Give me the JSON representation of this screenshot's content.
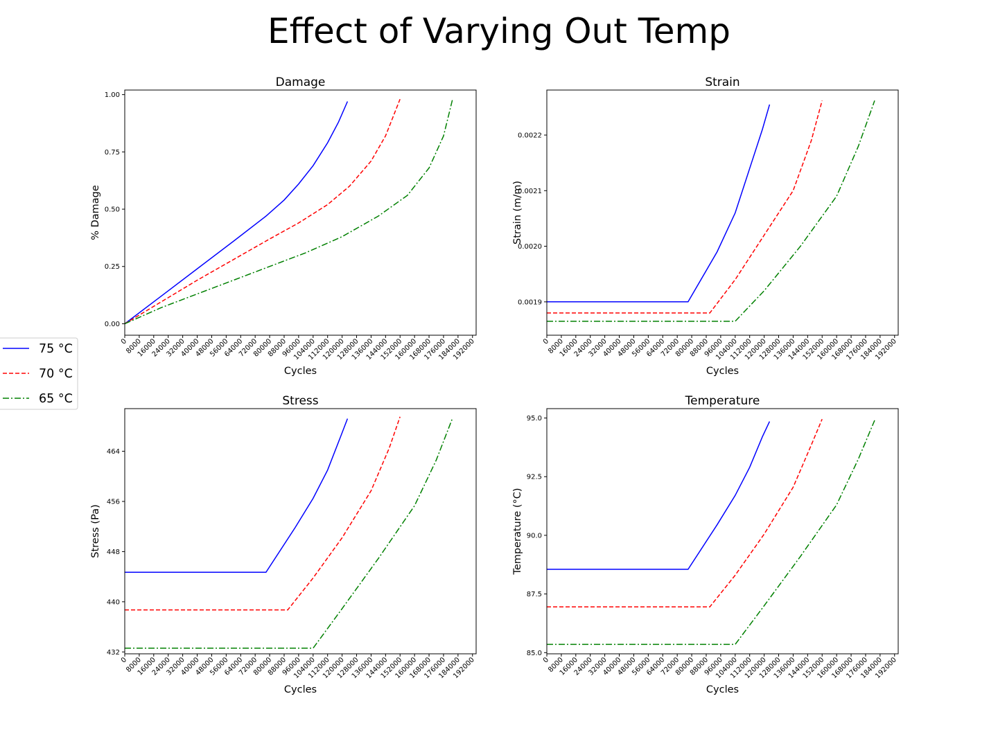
{
  "figure": {
    "title": "Effect of Varying Out Temp"
  },
  "legend": {
    "placement": "left",
    "entries": [
      {
        "label": "75 °C",
        "color": "#0000ff",
        "dash": "solid"
      },
      {
        "label": "70 °C",
        "color": "#ff0000",
        "dash": "dashed"
      },
      {
        "label": "65 °C",
        "color": "#008000",
        "dash": "dashdot"
      }
    ]
  },
  "chart_data": [
    {
      "type": "line",
      "title": "Damage",
      "xlabel": "Cycles",
      "ylabel": "% Damage",
      "xlim": [
        0,
        194000
      ],
      "ylim": [
        -0.05,
        1.02
      ],
      "xticks": [
        0,
        8000,
        16000,
        24000,
        32000,
        40000,
        48000,
        56000,
        64000,
        72000,
        80000,
        88000,
        96000,
        104000,
        112000,
        120000,
        128000,
        136000,
        144000,
        152000,
        160000,
        168000,
        176000,
        184000,
        192000
      ],
      "yticks": [
        0.0,
        0.25,
        0.5,
        0.75,
        1.0
      ],
      "ytick_labels": [
        "0.00",
        "0.25",
        "0.50",
        "0.75",
        "1.00"
      ],
      "series": [
        {
          "name": "75 °C",
          "x": [
            0,
            20000,
            40000,
            60000,
            78000,
            88000,
            96000,
            104000,
            112000,
            118000,
            123000
          ],
          "y": [
            0,
            0.12,
            0.24,
            0.36,
            0.47,
            0.54,
            0.61,
            0.69,
            0.79,
            0.88,
            0.97
          ]
        },
        {
          "name": "70 °C",
          "x": [
            0,
            20000,
            40000,
            60000,
            80000,
            96000,
            112000,
            124000,
            136000,
            144000,
            152000
          ],
          "y": [
            0,
            0.095,
            0.19,
            0.28,
            0.37,
            0.44,
            0.52,
            0.6,
            0.71,
            0.82,
            0.98
          ]
        },
        {
          "name": "65 °C",
          "x": [
            0,
            20000,
            40000,
            60000,
            80000,
            100000,
            120000,
            140000,
            156000,
            168000,
            176000,
            181000
          ],
          "y": [
            0,
            0.07,
            0.13,
            0.19,
            0.25,
            0.31,
            0.38,
            0.47,
            0.56,
            0.68,
            0.82,
            0.98
          ]
        }
      ]
    },
    {
      "type": "line",
      "title": "Strain",
      "xlabel": "Cycles",
      "ylabel": "Strain (m/m)",
      "xlim": [
        0,
        194000
      ],
      "ylim": [
        0.00184,
        0.002281
      ],
      "xticks": [
        0,
        8000,
        16000,
        24000,
        32000,
        40000,
        48000,
        56000,
        64000,
        72000,
        80000,
        88000,
        96000,
        104000,
        112000,
        120000,
        128000,
        136000,
        144000,
        152000,
        160000,
        168000,
        176000,
        184000,
        192000
      ],
      "yticks": [
        0.0019,
        0.002,
        0.0021,
        0.0022
      ],
      "ytick_labels": [
        "0.0019",
        "0.0020",
        "0.0021",
        "0.0022"
      ],
      "series": [
        {
          "name": "75 °C",
          "x": [
            0,
            78000,
            94000,
            104000,
            112000,
            119000,
            123000
          ],
          "y": [
            0.0019,
            0.0019,
            0.00199,
            0.00206,
            0.00214,
            0.00221,
            0.002255
          ]
        },
        {
          "name": "70 °C",
          "x": [
            0,
            90000,
            104000,
            120000,
            136000,
            146000,
            152000
          ],
          "y": [
            0.00188,
            0.00188,
            0.00194,
            0.00202,
            0.0021,
            0.00219,
            0.002262
          ]
        },
        {
          "name": "65 °C",
          "x": [
            0,
            104000,
            120000,
            140000,
            160000,
            172000,
            181000
          ],
          "y": [
            0.001865,
            0.001865,
            0.00192,
            0.002,
            0.00209,
            0.00218,
            0.002262
          ]
        }
      ]
    },
    {
      "type": "line",
      "title": "Stress",
      "xlabel": "Cycles",
      "ylabel": "Stress (Pa)",
      "xlim": [
        0,
        194000
      ],
      "ylim": [
        431.7,
        470.8
      ],
      "xticks": [
        0,
        8000,
        16000,
        24000,
        32000,
        40000,
        48000,
        56000,
        64000,
        72000,
        80000,
        88000,
        96000,
        104000,
        112000,
        120000,
        128000,
        136000,
        144000,
        152000,
        160000,
        168000,
        176000,
        184000,
        192000
      ],
      "yticks": [
        432,
        440,
        448,
        456,
        464
      ],
      "ytick_labels": [
        "432",
        "440",
        "448",
        "456",
        "464"
      ],
      "series": [
        {
          "name": "75 °C",
          "x": [
            0,
            78000,
            94000,
            104000,
            112000,
            119000,
            123000
          ],
          "y": [
            444.7,
            444.7,
            451.8,
            456.5,
            461.0,
            466.2,
            469.2
          ]
        },
        {
          "name": "70 °C",
          "x": [
            0,
            90000,
            104000,
            120000,
            136000,
            146000,
            152000
          ],
          "y": [
            438.7,
            438.7,
            443.8,
            450.2,
            457.7,
            464.5,
            469.5
          ]
        },
        {
          "name": "65 °C",
          "x": [
            0,
            104000,
            120000,
            140000,
            160000,
            172000,
            181000
          ],
          "y": [
            432.6,
            432.6,
            438.9,
            446.9,
            455.3,
            462.6,
            469.3
          ]
        }
      ]
    },
    {
      "type": "line",
      "title": "Temperature",
      "xlabel": "Cycles",
      "ylabel": "Temperature (°C)",
      "xlim": [
        0,
        194000
      ],
      "ylim": [
        84.95,
        95.4
      ],
      "xticks": [
        0,
        8000,
        16000,
        24000,
        32000,
        40000,
        48000,
        56000,
        64000,
        72000,
        80000,
        88000,
        96000,
        104000,
        112000,
        120000,
        128000,
        136000,
        144000,
        152000,
        160000,
        168000,
        176000,
        184000,
        192000
      ],
      "yticks": [
        85.0,
        87.5,
        90.0,
        92.5,
        95.0
      ],
      "ytick_labels": [
        "85.0",
        "87.5",
        "90.0",
        "92.5",
        "95.0"
      ],
      "series": [
        {
          "name": "75 °C",
          "x": [
            0,
            78000,
            94000,
            104000,
            112000,
            119000,
            123000
          ],
          "y": [
            88.55,
            88.55,
            90.45,
            91.7,
            92.9,
            94.2,
            94.85
          ]
        },
        {
          "name": "70 °C",
          "x": [
            0,
            90000,
            104000,
            120000,
            136000,
            146000,
            152000
          ],
          "y": [
            86.95,
            86.95,
            88.3,
            90.05,
            92.05,
            93.85,
            94.95
          ]
        },
        {
          "name": "65 °C",
          "x": [
            0,
            104000,
            120000,
            140000,
            160000,
            172000,
            181000
          ],
          "y": [
            85.35,
            85.35,
            87.0,
            89.1,
            91.3,
            93.25,
            94.9
          ]
        }
      ]
    }
  ]
}
